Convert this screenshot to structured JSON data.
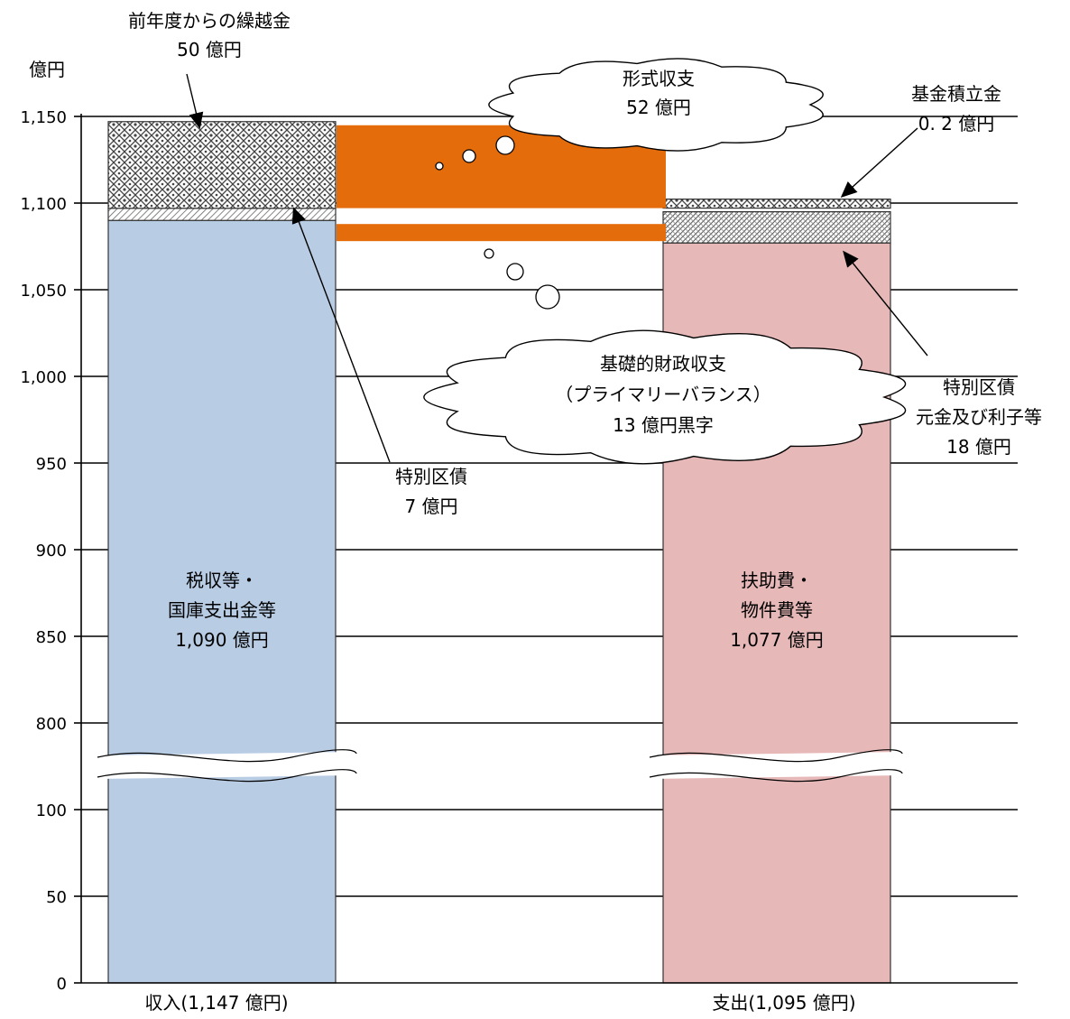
{
  "chart_data": {
    "type": "bar",
    "stacked": true,
    "axis_break": {
      "lower_max": 100,
      "upper_min": 800
    },
    "ylabel": "億円",
    "yticks": [
      "0",
      "50",
      "100",
      "800",
      "850",
      "900",
      "950",
      "1,000",
      "1,050",
      "1,100",
      "1,150"
    ],
    "ytick_values": [
      0,
      50,
      100,
      800,
      850,
      900,
      950,
      1000,
      1050,
      1100,
      1150
    ],
    "grid": true,
    "categories": [
      "収入(1,147 億円)",
      "支出(1,095 億円)"
    ],
    "bars": [
      {
        "category": "収入(1,147 億円)",
        "segments": [
          {
            "value": 1090,
            "label_lines": [
              "税収等・",
              "国庫支出金等",
              "1,090 億円"
            ],
            "color": "#b8cce4",
            "pattern": "solid"
          },
          {
            "value": 7,
            "color": "#cccccc",
            "pattern": "diagonal-hatch"
          },
          {
            "value": 50,
            "color": "#888888",
            "pattern": "crosshatch"
          }
        ]
      },
      {
        "category": "支出(1,095 億円)",
        "segments": [
          {
            "value": 1077,
            "label_lines": [
              "扶助費・",
              "物件費等",
              "1,077 億円"
            ],
            "color": "#e6b8b7",
            "pattern": "solid"
          },
          {
            "value": 18,
            "color": "#777777",
            "pattern": "dense-hatch"
          },
          {
            "value": 0.2,
            "color": "#888888",
            "pattern": "crosshatch"
          }
        ]
      }
    ],
    "balance_bands": [
      {
        "from": 1095,
        "to": 1147,
        "color": "#e46c0a"
      },
      {
        "from": 1077,
        "to": 1090,
        "color": "#e46c0a"
      }
    ],
    "annotations": [
      {
        "name": "carryover",
        "lines": [
          "前年度からの繰越金",
          "50 億円"
        ]
      },
      {
        "name": "special-bond-revenue",
        "lines": [
          "特別区債",
          "7 億円"
        ]
      },
      {
        "name": "fund-reserve",
        "lines": [
          "基金積立金",
          "0. 2 億円"
        ]
      },
      {
        "name": "special-bond-repayment",
        "lines": [
          "特別区債",
          "元金及び利子等",
          "18 億円"
        ]
      },
      {
        "name": "formal-balance",
        "lines": [
          "形式収支",
          "52 億円"
        ]
      },
      {
        "name": "primary-balance",
        "lines": [
          "基礎的財政収支",
          "（プライマリーバランス）",
          "13 億円黒字"
        ]
      }
    ],
    "colors": {
      "orange": "#e46c0a",
      "grid": "#000000"
    }
  }
}
